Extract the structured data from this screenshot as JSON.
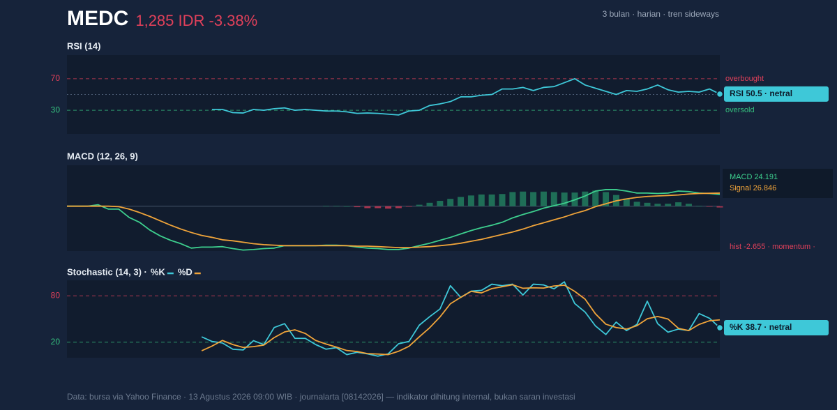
{
  "header": {
    "ticker": "MEDC",
    "quote": "1,285 IDR -3.38%",
    "meta": "3 bulan · harian · tren sideways"
  },
  "footer": "Data: bursa via Yahoo Finance · 13 Agustus 2026 09:00 WIB · journalarta [08142026] — indikator dihitung internal, bukan saran investasi",
  "chart_data": [
    {
      "type": "line",
      "title": "RSI (14)",
      "ylim": [
        0,
        100
      ],
      "yticks": [
        30,
        70
      ],
      "tick_colors": [
        "#35c07f",
        "#e0405a"
      ],
      "tick_notes": [
        "oversold",
        "overbought"
      ],
      "midline": 50,
      "midline_style": "dotted",
      "series": [
        {
          "color": "#3ec8d8",
          "end_label": "RSI 50.5 · netral",
          "values": [
            null,
            null,
            null,
            null,
            null,
            null,
            null,
            null,
            null,
            null,
            null,
            null,
            null,
            null,
            31,
            31,
            27,
            26.5,
            31,
            30,
            32,
            33,
            30,
            31,
            30,
            29,
            29,
            28,
            26,
            26.5,
            26,
            25,
            24,
            29,
            30,
            36,
            38,
            41,
            47,
            47,
            49,
            50,
            57,
            57,
            59,
            55,
            59,
            60,
            65,
            70,
            62,
            58,
            54,
            50,
            55,
            54,
            57,
            62,
            56,
            53,
            54,
            53,
            57,
            50.5
          ]
        }
      ]
    },
    {
      "type": "line",
      "title": "MACD (12, 26, 9)",
      "ylim": [
        -92,
        84
      ],
      "yticks": [],
      "midline": 0,
      "midline_style": "solid",
      "series": [
        {
          "kind": "bar",
          "color": "#1f6e57",
          "negative_color": "#a8344f",
          "label": "hist -2.655 · momentum ·",
          "label_color": "#e0405a",
          "values": [
            null,
            null,
            null,
            null,
            null,
            null,
            null,
            null,
            null,
            null,
            null,
            null,
            null,
            null,
            null,
            null,
            null,
            null,
            null,
            null,
            null,
            null,
            null,
            null,
            null,
            1,
            1,
            0,
            -2,
            -4,
            -4,
            -5,
            -4,
            -1,
            3,
            7,
            11,
            15,
            19,
            22,
            24,
            24,
            25,
            29,
            30,
            29,
            30,
            29,
            28,
            28,
            30,
            32,
            29,
            23,
            16,
            9,
            7,
            5,
            5,
            8,
            5,
            1,
            -0.5,
            -2.655
          ]
        },
        {
          "color": "#3dcf8e",
          "label": "MACD 24.191",
          "values": [
            0,
            0,
            0,
            3,
            -6,
            -6,
            -23,
            -33,
            -49,
            -61,
            -70,
            -77,
            -86,
            -84,
            -84,
            -83,
            -87,
            -90,
            -89,
            -87,
            -86,
            -81,
            -81,
            -81,
            -81,
            -80,
            -80,
            -81,
            -84,
            -86,
            -87,
            -89,
            -89,
            -86,
            -81,
            -76,
            -70,
            -64,
            -57,
            -50,
            -44,
            -39,
            -33,
            -24,
            -17,
            -11,
            -4,
            1,
            6,
            13,
            21,
            31,
            34,
            34,
            31,
            27,
            27,
            26,
            27,
            31,
            30,
            27,
            26,
            24.191
          ]
        },
        {
          "color": "#f0a43a",
          "label": "Signal 26.846",
          "values": [
            0,
            0,
            0,
            0,
            0,
            -1,
            -6,
            -13,
            -21,
            -30,
            -39,
            -47,
            -54,
            -60,
            -64,
            -69,
            -71,
            -74,
            -77,
            -79,
            -80,
            -81,
            -81,
            -81,
            -81,
            -81,
            -81,
            -81,
            -82,
            -82,
            -83,
            -84,
            -85,
            -85,
            -84,
            -83,
            -81,
            -79,
            -76,
            -72,
            -68,
            -63,
            -58,
            -53,
            -47,
            -40,
            -34,
            -28,
            -22,
            -15,
            -9,
            -1,
            5,
            11,
            15,
            18,
            20,
            21,
            22,
            23,
            25,
            26,
            26.5,
            26.846
          ]
        }
      ]
    },
    {
      "type": "line",
      "title": "Stochastic (14, 3) ·",
      "ylim": [
        0,
        100
      ],
      "yticks": [
        20,
        80
      ],
      "tick_colors": [
        "#35c07f",
        "#e0405a"
      ],
      "series": [
        {
          "name": "%K",
          "color": "#3ec8d8",
          "end_label": "%K 38.7 · netral",
          "values": [
            null,
            null,
            null,
            null,
            null,
            null,
            null,
            null,
            null,
            null,
            null,
            null,
            null,
            27,
            21,
            19,
            11,
            10,
            22,
            17,
            39,
            44,
            25,
            25,
            17,
            11,
            13,
            4,
            7,
            5,
            2,
            5,
            18,
            21,
            42,
            53,
            63,
            93,
            78,
            86,
            87,
            95,
            93,
            95,
            81,
            95,
            94,
            89,
            98,
            70,
            59,
            41,
            30,
            46,
            35,
            43,
            73,
            44,
            33,
            37,
            35,
            57,
            51,
            38.7
          ]
        },
        {
          "name": "%D",
          "color": "#f0a43a",
          "values": [
            null,
            null,
            null,
            null,
            null,
            null,
            null,
            null,
            null,
            null,
            null,
            null,
            null,
            9,
            15,
            22.3,
            17,
            13.3,
            14.3,
            16.3,
            26,
            33.3,
            36,
            31.3,
            22.3,
            17.7,
            13.7,
            9.3,
            8,
            5.3,
            4.7,
            4,
            8.3,
            14.7,
            27,
            38.7,
            52.7,
            69.7,
            78,
            85.7,
            83.7,
            89.3,
            91.7,
            94.3,
            89.7,
            90.3,
            90,
            92.7,
            93.7,
            85.7,
            75.7,
            56.7,
            43.3,
            39,
            37,
            41.3,
            50.3,
            53.3,
            50,
            38,
            35,
            43,
            47.7,
            48.9
          ]
        }
      ]
    }
  ]
}
